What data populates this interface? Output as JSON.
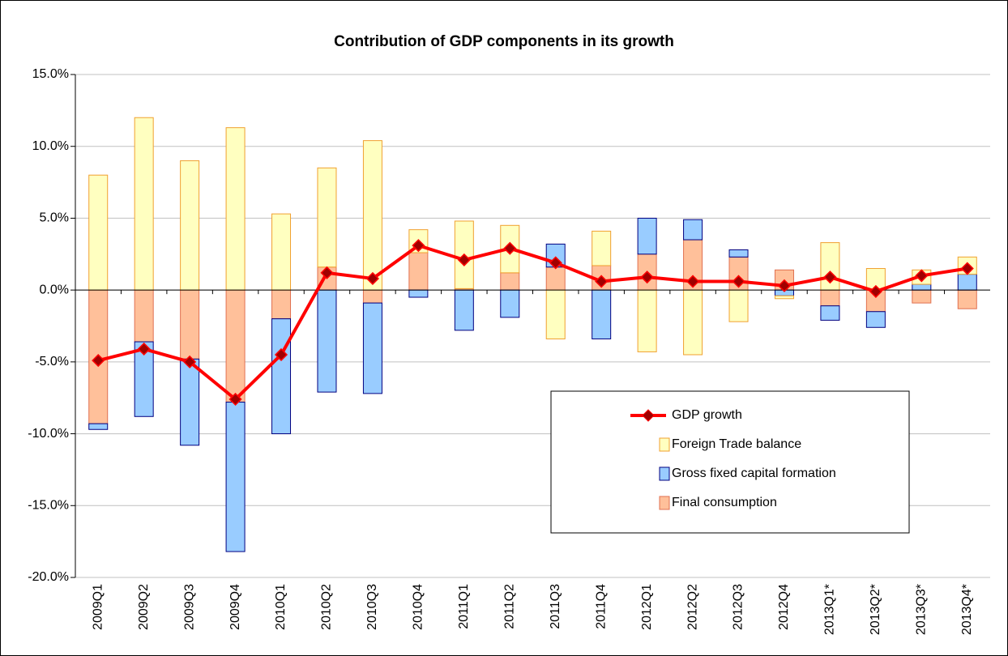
{
  "chart_data": {
    "type": "bar",
    "title": "Contribution of GDP components in its growth",
    "categories": [
      "2009Q1",
      "2009Q2",
      "2009Q3",
      "2009Q4",
      "2010Q1",
      "2010Q2",
      "2010Q3",
      "2010Q4",
      "2011Q1",
      "2011Q2",
      "2011Q3",
      "2011Q4",
      "2012Q1",
      "2012Q2",
      "2012Q3",
      "2012Q4",
      "2013Q1*",
      "2013Q2*",
      "2013Q3*",
      "2013Q4*"
    ],
    "stacked": true,
    "series": [
      {
        "name": "Final consumption",
        "color": "#ffc09a",
        "edge": "#e07050",
        "values": [
          -9.3,
          -3.6,
          -4.8,
          -7.8,
          -2.0,
          1.6,
          -0.9,
          2.6,
          0.1,
          1.2,
          1.6,
          1.7,
          2.5,
          3.5,
          2.3,
          1.4,
          -1.1,
          -1.5,
          -0.9,
          -1.3
        ]
      },
      {
        "name": "Gross fixed capital formation",
        "color": "#99ccff",
        "edge": "#000080",
        "values": [
          -0.4,
          -5.2,
          -6.0,
          -10.4,
          -8.0,
          -7.1,
          -6.3,
          -0.5,
          -2.8,
          -1.9,
          1.6,
          -3.4,
          2.5,
          1.4,
          0.5,
          -0.4,
          -1.0,
          -1.1,
          0.4,
          1.1
        ]
      },
      {
        "name": "Foreign Trade balance",
        "color": "#ffffc0",
        "edge": "#f0a030",
        "values": [
          8.0,
          12.0,
          9.0,
          11.3,
          5.3,
          6.9,
          10.4,
          1.6,
          4.7,
          3.3,
          -3.4,
          2.4,
          -4.3,
          -4.5,
          -2.2,
          -0.2,
          3.3,
          1.5,
          1.0,
          1.2
        ]
      },
      {
        "name": "GDP growth",
        "type": "line",
        "color": "#ff0000",
        "marker_color": "#a00000",
        "values": [
          -4.9,
          -4.1,
          -5.0,
          -7.6,
          -4.5,
          1.2,
          0.8,
          3.1,
          2.1,
          2.9,
          1.9,
          0.6,
          0.9,
          0.6,
          0.6,
          0.3,
          0.9,
          -0.1,
          1.0,
          1.5
        ]
      }
    ],
    "ylim": [
      -20,
      15
    ],
    "yticks": [
      {
        "value": 15,
        "label": "15.0%"
      },
      {
        "value": 10,
        "label": "10.0%"
      },
      {
        "value": 5,
        "label": "5.0%"
      },
      {
        "value": 0,
        "label": "0.0%"
      },
      {
        "value": -5,
        "label": "-5.0%"
      },
      {
        "value": -10,
        "label": "-10.0%"
      },
      {
        "value": -15,
        "label": "-15.0%"
      },
      {
        "value": -20,
        "label": "-20.0%"
      }
    ],
    "grid": true
  }
}
